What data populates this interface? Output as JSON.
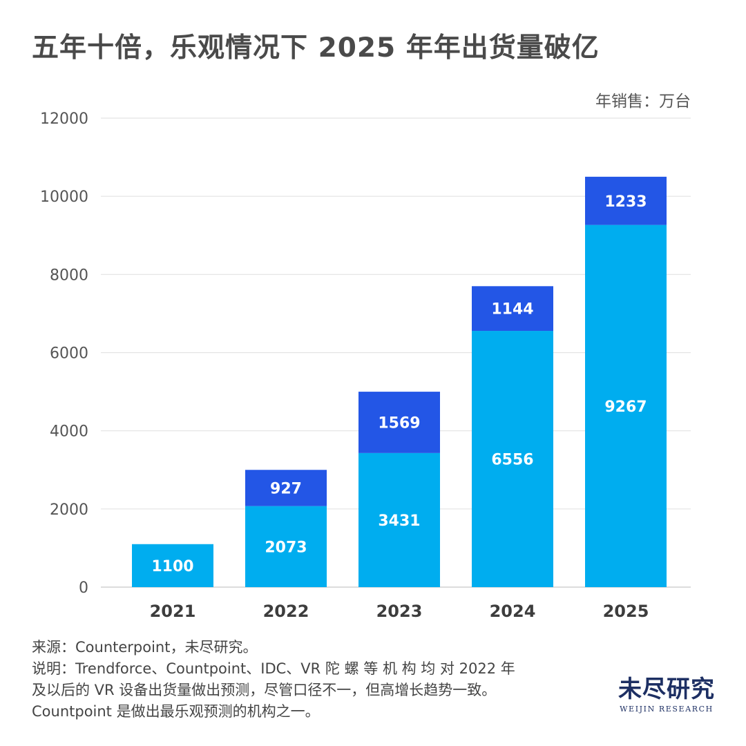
{
  "header": {
    "title": "五年十倍，乐观情况下 2025 年年出货量破亿",
    "unit": "年销售：万台"
  },
  "chart_data": {
    "type": "bar",
    "stacked": true,
    "categories": [
      "2021",
      "2022",
      "2023",
      "2024",
      "2025"
    ],
    "series": [
      {
        "values": [
          1100,
          2073,
          3431,
          6556,
          9267
        ],
        "color": "#00adef"
      },
      {
        "values": [
          0,
          927,
          1569,
          1144,
          1233
        ],
        "color": "#2356e6"
      }
    ],
    "y_ticks": [
      "0",
      "2000",
      "4000",
      "6000",
      "8000",
      "10000",
      "12000"
    ],
    "ylim": [
      0,
      12000
    ],
    "grid": true,
    "legend": "none"
  },
  "footer": {
    "source": "来源：Counterpoint，未尽研究。",
    "note_line1": "说明：Trendforce、Countpoint、IDC、VR 陀 螺 等 机 构 均 对 2022 年",
    "note_line2": "及以后的 VR 设备出货量做出预测，尽管口径不一，但高增长趋势一致。",
    "note_line3": "Countpoint 是做出最乐观预测的机构之一。"
  },
  "logo": {
    "cn": "未尽研究",
    "en": "WEIJIN RESEARCH"
  }
}
